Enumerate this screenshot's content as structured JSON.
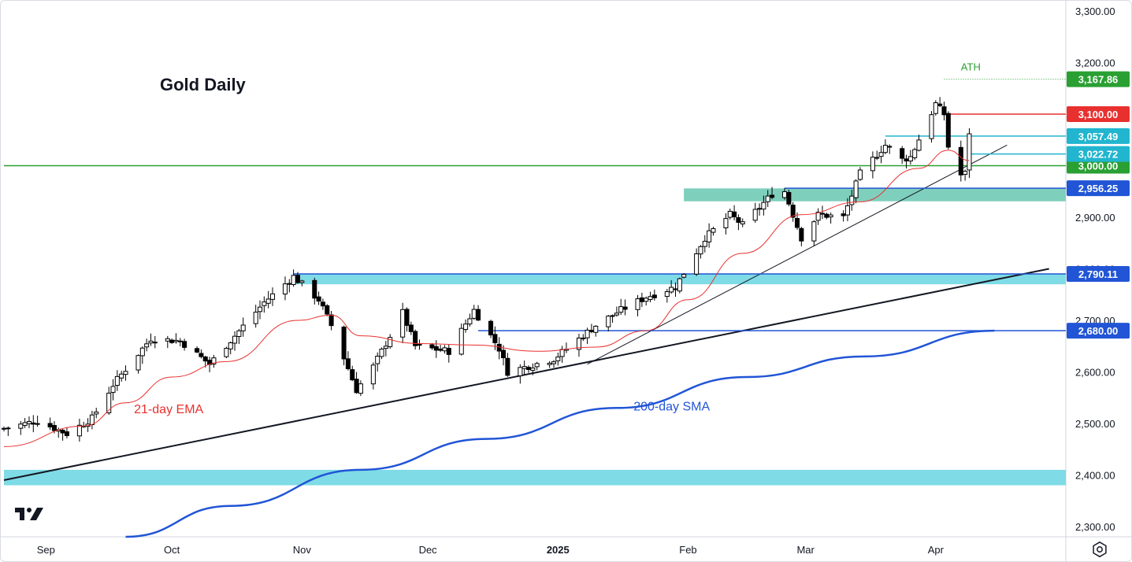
{
  "chart_data": {
    "type": "candlestick",
    "title": "Gold Daily",
    "y_axis": {
      "min": 2280,
      "max": 3320,
      "ticks": [
        2300,
        2400,
        2500,
        2600,
        2700,
        2800,
        2900,
        3000,
        3100,
        3200,
        3300
      ],
      "tick_labels": [
        "2,300.00",
        "2,400.00",
        "2,500.00",
        "2,600.00",
        "2,700.00",
        "2,800.00",
        "2,900.00",
        "3,000.00",
        "3,100.00",
        "3,200.00",
        "3,300.00"
      ]
    },
    "x_axis": {
      "labels": [
        "Sep",
        "Oct",
        "Nov",
        "Dec",
        "2025",
        "Feb",
        "Mar",
        "Apr"
      ],
      "label_dates": [
        "2024-09-01",
        "2024-10-01",
        "2024-11-01",
        "2024-12-01",
        "2025-01-01",
        "2025-02-01",
        "2025-03-01",
        "2025-04-01"
      ],
      "bold_label": "2025",
      "start": "2024-08-22",
      "end": "2025-05-02"
    },
    "colors": {
      "up_body": "#ffffff",
      "down_body": "#000000",
      "candle_outline": "#000000",
      "ema": "#e8312f",
      "sma": "#2155d6",
      "zone_cyan": "#7fdbe6",
      "zone_teal": "#7fcfbd",
      "green_line": "#2aa033",
      "red_line": "#e8312f",
      "blue_line": "#2155d6",
      "cyan_line": "#22b5cf"
    },
    "anchors": [
      [
        "2024-08-22",
        2490
      ],
      [
        "2024-08-30",
        2505
      ],
      [
        "2024-09-06",
        2480
      ],
      [
        "2024-09-12",
        2510
      ],
      [
        "2024-09-17",
        2575
      ],
      [
        "2024-09-26",
        2665
      ],
      [
        "2024-10-03",
        2660
      ],
      [
        "2024-10-10",
        2615
      ],
      [
        "2024-10-16",
        2670
      ],
      [
        "2024-10-23",
        2735
      ],
      [
        "2024-10-30",
        2785
      ],
      [
        "2024-11-05",
        2740
      ],
      [
        "2024-11-08",
        2690
      ],
      [
        "2024-11-14",
        2565
      ],
      [
        "2024-11-18",
        2610
      ],
      [
        "2024-11-25",
        2715
      ],
      [
        "2024-11-28",
        2650
      ],
      [
        "2024-12-06",
        2640
      ],
      [
        "2024-12-12",
        2720
      ],
      [
        "2024-12-18",
        2645
      ],
      [
        "2024-12-20",
        2600
      ],
      [
        "2024-12-31",
        2625
      ],
      [
        "2025-01-10",
        2690
      ],
      [
        "2025-01-16",
        2720
      ],
      [
        "2025-01-22",
        2745
      ],
      [
        "2025-01-29",
        2765
      ],
      [
        "2025-02-05",
        2860
      ],
      [
        "2025-02-11",
        2905
      ],
      [
        "2025-02-14",
        2885
      ],
      [
        "2025-02-21",
        2945
      ],
      [
        "2025-02-24",
        2950
      ],
      [
        "2025-02-28",
        2860
      ],
      [
        "2025-03-04",
        2905
      ],
      [
        "2025-03-10",
        2900
      ],
      [
        "2025-03-14",
        2985
      ],
      [
        "2025-03-20",
        3040
      ],
      [
        "2025-03-24",
        3012
      ],
      [
        "2025-03-26",
        3017
      ],
      [
        "2025-04-01",
        3120
      ],
      [
        "2025-04-03",
        3100
      ],
      [
        "2025-04-04",
        3037
      ],
      [
        "2025-04-07",
        2982
      ],
      [
        "2025-04-08",
        2985
      ],
      [
        "2025-04-09",
        3065
      ]
    ],
    "ema_21": [
      [
        "2024-08-22",
        2455
      ],
      [
        "2024-09-10",
        2495
      ],
      [
        "2024-09-20",
        2540
      ],
      [
        "2024-10-01",
        2590
      ],
      [
        "2024-10-14",
        2620
      ],
      [
        "2024-10-31",
        2700
      ],
      [
        "2024-11-08",
        2710
      ],
      [
        "2024-11-15",
        2670
      ],
      [
        "2024-11-29",
        2655
      ],
      [
        "2024-12-12",
        2652
      ],
      [
        "2024-12-27",
        2640
      ],
      [
        "2025-01-10",
        2648
      ],
      [
        "2025-01-22",
        2680
      ],
      [
        "2025-02-01",
        2740
      ],
      [
        "2025-02-14",
        2830
      ],
      [
        "2025-02-28",
        2905
      ],
      [
        "2025-03-14",
        2930
      ],
      [
        "2025-03-28",
        2995
      ],
      [
        "2025-04-04",
        3030
      ],
      [
        "2025-04-09",
        3010
      ]
    ],
    "sma_200": [
      [
        "2024-09-20",
        2280
      ],
      [
        "2024-10-15",
        2340
      ],
      [
        "2024-11-15",
        2410
      ],
      [
        "2024-12-15",
        2470
      ],
      [
        "2025-01-15",
        2530
      ],
      [
        "2025-02-15",
        2590
      ],
      [
        "2025-03-15",
        2630
      ],
      [
        "2025-04-15",
        2680
      ]
    ],
    "trendlines": [
      {
        "name": "long-term trendline",
        "from": [
          "2024-08-22",
          2390
        ],
        "to": [
          "2025-04-28",
          2800
        ],
        "color": "#131722"
      },
      {
        "name": "short-term trendline",
        "from": [
          "2025-01-08",
          2615
        ],
        "to": [
          "2025-04-18",
          3040
        ],
        "color": "#131722"
      }
    ],
    "zones": [
      {
        "name": "zone-2790",
        "from": "2024-10-30",
        "low": 2770,
        "high": 2790
      },
      {
        "name": "zone-2956",
        "from": "2025-01-31",
        "low": 2931,
        "high": 2956
      },
      {
        "name": "zone-2400",
        "from": "2024-08-22",
        "low": 2380,
        "high": 2410
      }
    ],
    "levels": [
      {
        "name": "level-3000",
        "value": 3000,
        "from": "2024-08-22",
        "color": "#2aa033",
        "label": "3,000.00"
      },
      {
        "name": "level-2956",
        "value": 2956.25,
        "from": "2025-02-24",
        "color": "#2155d6",
        "label": "2,956.25"
      },
      {
        "name": "level-2790",
        "value": 2790.11,
        "from": "2024-10-30",
        "color": "#2155d6",
        "label": "2,790.11"
      },
      {
        "name": "level-2680",
        "value": 2680,
        "from": "2024-12-13",
        "color": "#2155d6",
        "label": "2,680.00"
      },
      {
        "name": "level-3100",
        "value": 3100,
        "from": "2025-04-03",
        "color": "#e8312f",
        "label": "3,100.00"
      },
      {
        "name": "level-3057",
        "value": 3057.49,
        "from": "2025-03-20",
        "color": "#22b5cf",
        "label": "3,057.49"
      },
      {
        "name": "level-3022",
        "value": 3022.72,
        "from": "2025-04-09",
        "color": "#22b5cf",
        "label": "3,022.72"
      },
      {
        "name": "level-ath",
        "value": 3167.86,
        "from": "2025-04-03",
        "color": "#2aa033",
        "label": "3,167.86",
        "dotted": true
      }
    ],
    "annotations": [
      {
        "name": "ath-label",
        "text": "ATH",
        "date": "2025-04-07",
        "value": 3185,
        "color": "#2aa033"
      },
      {
        "name": "ema-label",
        "text": "21-day EMA",
        "date": "2024-09-22",
        "value": 2520,
        "color": "#e8312f"
      },
      {
        "name": "sma-label",
        "text": "200-day SMA",
        "date": "2025-01-19",
        "value": 2525,
        "color": "#2155d6"
      }
    ],
    "grid": false,
    "legend": "none"
  }
}
